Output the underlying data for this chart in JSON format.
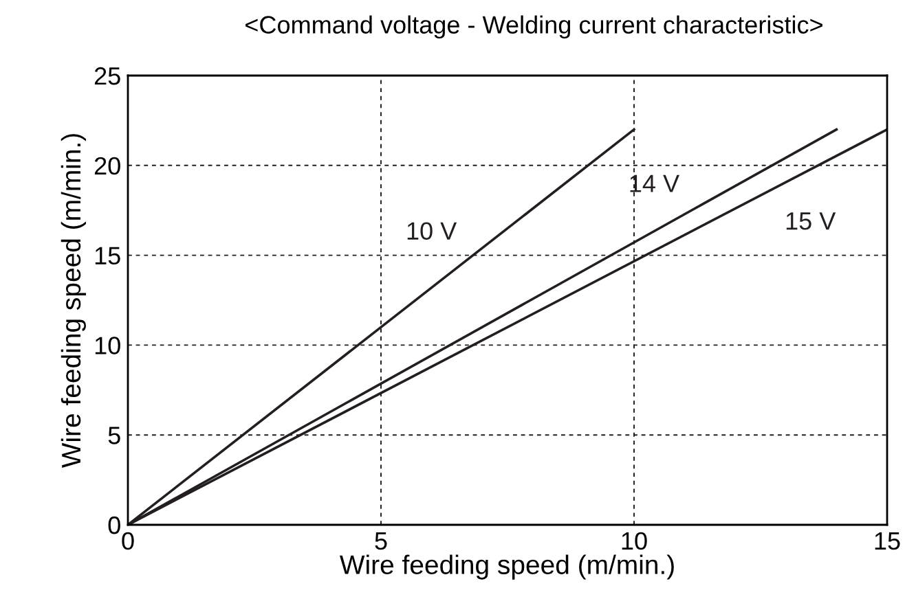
{
  "chart_data": {
    "type": "line",
    "title": "<Command voltage - Welding current characteristic>",
    "xlabel": "Wire feeding speed (m/min.)",
    "ylabel": "Wire feeding speed (m/min.)",
    "series": [
      {
        "name": "10 V",
        "color": "#231f20",
        "x": [
          0,
          10
        ],
        "values": [
          0,
          22
        ]
      },
      {
        "name": "14 V",
        "color": "#231f20",
        "x": [
          0,
          14
        ],
        "values": [
          0,
          22
        ]
      },
      {
        "name": "15 V",
        "color": "#231f20",
        "x": [
          0,
          15
        ],
        "values": [
          0,
          22
        ]
      }
    ],
    "xlim": [
      0,
      15
    ],
    "xticks": [
      0,
      5,
      10,
      15
    ],
    "ylim": [
      0,
      25
    ],
    "yticks": [
      0,
      5,
      10,
      15,
      20,
      25
    ],
    "grid": true,
    "line_style": "solid",
    "marker": "none",
    "legend": false
  }
}
